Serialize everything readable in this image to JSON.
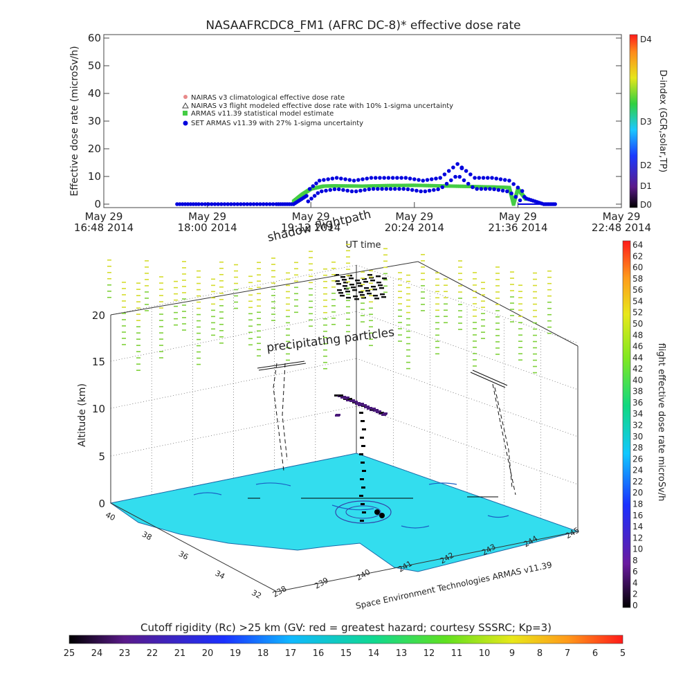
{
  "chart_data": [
    {
      "type": "scatter",
      "title": "NASAAFRCDC8_FM1 (AFRC DC-8)* effective dose rate",
      "ylabel": "Effective dose rate (microSv/h)",
      "xlabel": "UT time",
      "ylim": [
        0,
        60
      ],
      "yticks": [
        "0",
        "10",
        "20",
        "30",
        "40",
        "50",
        "60"
      ],
      "xticks": [
        {
          "d": "May 29",
          "t": "16:48 2014"
        },
        {
          "d": "May 29",
          "t": "18:00 2014"
        },
        {
          "d": "May 29",
          "t": "19:12 2014"
        },
        {
          "d": "May 29",
          "t": "20:24 2014"
        },
        {
          "d": "May 29",
          "t": "21:36 2014"
        },
        {
          "d": "May 29",
          "t": "22:48 2014"
        }
      ],
      "xlim_hours": [
        16.8,
        22.8
      ],
      "legend": [
        {
          "label": "NAIRAS v3 climatological effective dose rate",
          "color": "#e88a8a"
        },
        {
          "label": "NAIRAS v3 flight modeled effective dose rate with 10% 1-sigma uncertainty",
          "color": "#444444"
        },
        {
          "label": "ARMAS v11.39 statistical model estimate",
          "color": "#44cc44"
        },
        {
          "label": "SET ARMAS v11.39 with 27% 1-sigma uncertainty",
          "color": "#0000dd"
        }
      ],
      "series": [
        {
          "name": "SET ARMAS v11.39 with 27% 1-sigma uncertainty",
          "x": [
            17.65,
            17.9,
            18.2,
            18.5,
            18.8,
            19.0,
            19.15,
            19.3,
            19.5,
            19.7,
            19.9,
            20.1,
            20.3,
            20.5,
            20.7,
            20.9,
            21.1,
            21.3,
            21.5,
            21.7,
            21.9,
            22.05
          ],
          "y": [
            0,
            0,
            0,
            0,
            0,
            0,
            3,
            7,
            8,
            7,
            8,
            8,
            8,
            7,
            8,
            13,
            8,
            8,
            7,
            2,
            0,
            0
          ]
        },
        {
          "name": "ARMAS v11.39 statistical model estimate",
          "x": [
            19.0,
            19.1,
            19.2,
            19.35,
            19.5,
            19.8,
            20.1,
            20.4,
            20.7,
            21.0,
            21.3,
            21.5,
            21.55,
            21.6,
            21.7
          ],
          "y": [
            1,
            3.5,
            5.5,
            6.5,
            6.6,
            6.5,
            6.7,
            6.8,
            6.6,
            6.4,
            6.2,
            6.0,
            0,
            5.5,
            1.5
          ]
        }
      ],
      "d_index_colorbar": {
        "label": "D-index (GCR,solar,TP)",
        "ticks": [
          "D0",
          "D1",
          "D2",
          "D3",
          "D4"
        ]
      }
    },
    {
      "type": "scatter",
      "subtitle": "Space Environment Technologies ARMAS v11.39",
      "zlabel": "Altitude (km)",
      "zticks": [
        "0",
        "5",
        "10",
        "15",
        "20"
      ],
      "lat_ticks": [
        "40",
        "38",
        "36",
        "34",
        "32"
      ],
      "lon_ticks": [
        "238",
        "239",
        "240",
        "241",
        "242",
        "243",
        "244",
        "245"
      ],
      "annotations": [
        "precipitating particles",
        "shadow flightpath"
      ],
      "dose_colorbar": {
        "label": "flight effective dose rate microSv/h",
        "ticks": [
          "0",
          "2",
          "4",
          "6",
          "8",
          "10",
          "12",
          "14",
          "16",
          "18",
          "20",
          "22",
          "24",
          "26",
          "28",
          "30",
          "32",
          "34",
          "36",
          "38",
          "40",
          "42",
          "44",
          "46",
          "48",
          "50",
          "52",
          "54",
          "56",
          "58",
          "60",
          "62",
          "64"
        ]
      },
      "rc_colorbar": {
        "label": "Cutoff rigidity (Rc) >25 km (GV: red = greatest hazard; courtesy SSSRC; Kp=3)",
        "ticks": [
          "25",
          "24",
          "23",
          "22",
          "21",
          "20",
          "19",
          "18",
          "17",
          "16",
          "15",
          "14",
          "13",
          "12",
          "11",
          "10",
          "9",
          "8",
          "7",
          "6",
          "5"
        ]
      }
    }
  ]
}
